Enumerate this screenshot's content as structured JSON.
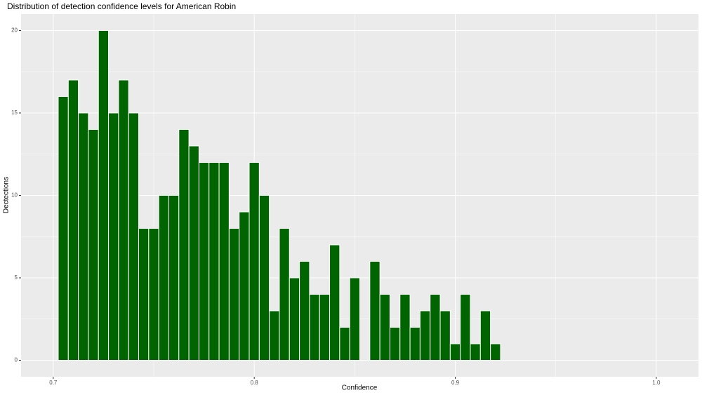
{
  "chart_data": {
    "type": "histogram",
    "title": "Distribution of detection confidence levels for American Robin",
    "x_label": "Confidence",
    "y_label": "Dectections",
    "bins": [
      0.7025,
      0.7075,
      0.7125,
      0.7175,
      0.7225,
      0.7275,
      0.7325,
      0.7375,
      0.7425,
      0.7475,
      0.7525,
      0.7575,
      0.7625,
      0.7675,
      0.7725,
      0.7775,
      0.7825,
      0.7875,
      0.7925,
      0.7975,
      0.8025,
      0.8075,
      0.8125,
      0.8175,
      0.8225,
      0.8275,
      0.8325,
      0.8375,
      0.8425,
      0.8475,
      0.8525,
      0.8575,
      0.8625,
      0.8675,
      0.8725,
      0.8775,
      0.8825,
      0.8875,
      0.8925,
      0.8975,
      0.9025,
      0.9075,
      0.9125,
      0.9175,
      0.9225
    ],
    "values": [
      16,
      17,
      15,
      14,
      20,
      15,
      17,
      15,
      8,
      8,
      10,
      10,
      14,
      13,
      12,
      12,
      12,
      8,
      9,
      12,
      10,
      3,
      8,
      5,
      6,
      4,
      4,
      7,
      2,
      5,
      0,
      6,
      4,
      2,
      4,
      2,
      3,
      4,
      3,
      1,
      4,
      1,
      3,
      1
    ],
    "color": "#006400",
    "xlim": [
      0.684,
      1.021
    ],
    "xticks": [
      {
        "value": 0.7,
        "label": "0.7"
      },
      {
        "value": 0.8,
        "label": "0.8"
      },
      {
        "value": 0.9,
        "label": "0.9"
      },
      {
        "value": 1.0,
        "label": "1.0"
      }
    ],
    "xminorticks": [
      0.75,
      0.85,
      0.95
    ],
    "ylim": [
      -1,
      21
    ],
    "yticks": [
      0,
      5,
      10,
      15,
      20
    ],
    "yminorticks": [
      2.5,
      7.5,
      12.5,
      17.5
    ],
    "grid": true
  }
}
